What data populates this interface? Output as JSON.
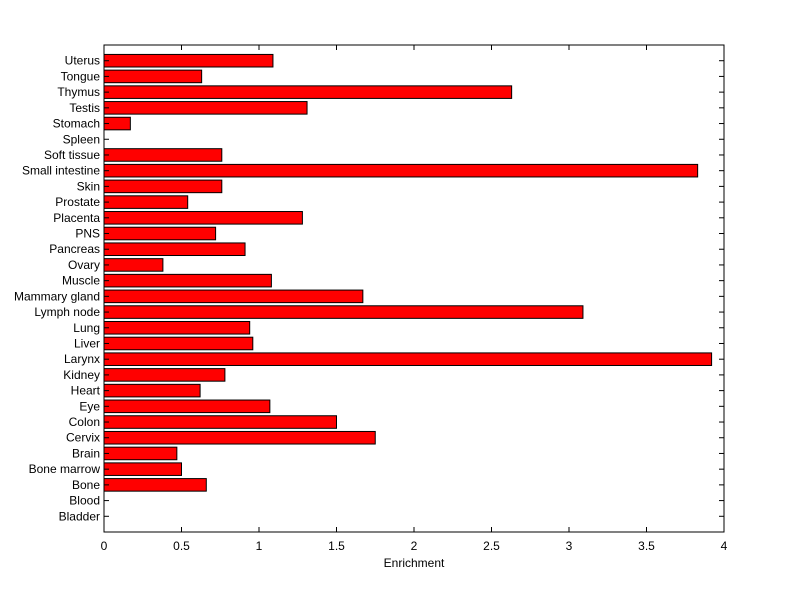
{
  "chart_data": {
    "type": "bar",
    "orientation": "horizontal",
    "title": "",
    "xlabel": "Enrichment",
    "ylabel": "",
    "xlim": [
      0,
      4
    ],
    "xticks": [
      "0",
      "0.5",
      "1",
      "1.5",
      "2",
      "2.5",
      "3",
      "3.5",
      "4"
    ],
    "grid": false,
    "bar_color": "#ff0000",
    "edge_color": "#000000",
    "categories": [
      "Bladder",
      "Blood",
      "Bone",
      "Bone marrow",
      "Brain",
      "Cervix",
      "Colon",
      "Eye",
      "Heart",
      "Kidney",
      "Larynx",
      "Liver",
      "Lung",
      "Lymph node",
      "Mammary gland",
      "Muscle",
      "Ovary",
      "Pancreas",
      "PNS",
      "Placenta",
      "Prostate",
      "Skin",
      "Small intestine",
      "Soft tissue",
      "Spleen",
      "Stomach",
      "Testis",
      "Thymus",
      "Tongue",
      "Uterus"
    ],
    "values": [
      0,
      0,
      0.66,
      0.5,
      0.47,
      1.75,
      1.5,
      1.07,
      0.62,
      0.78,
      3.92,
      0.96,
      0.94,
      3.09,
      1.67,
      1.08,
      0.38,
      0.91,
      0.72,
      1.28,
      0.54,
      0.76,
      3.83,
      0.76,
      0,
      0.17,
      1.31,
      2.63,
      0.63,
      1.09
    ]
  }
}
